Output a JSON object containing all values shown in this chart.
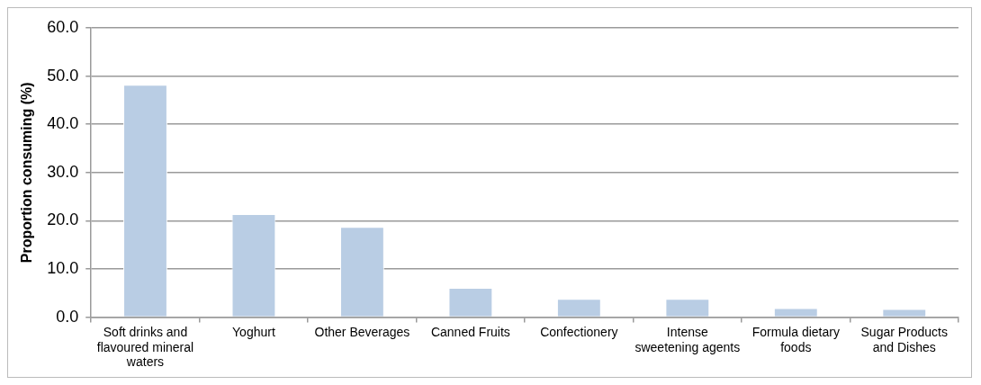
{
  "chart_data": {
    "type": "bar",
    "ylabel": "Proportion consuming (%)",
    "categories": [
      "Soft drinks and flavoured mineral waters",
      "Yoghurt",
      "Other Beverages",
      "Canned Fruits",
      "Confectionery",
      "Intense sweetening agents",
      "Formula dietary foods",
      "Sugar Products and Dishes"
    ],
    "values": [
      48.2,
      21.4,
      18.7,
      6.1,
      3.8,
      3.8,
      1.9,
      1.7
    ],
    "color": "#b9cde4",
    "ylim": [
      0,
      60
    ],
    "yticks": [
      {
        "value": 0,
        "label": "0.0"
      },
      {
        "value": 10,
        "label": "10.0"
      },
      {
        "value": 20,
        "label": "20.0"
      },
      {
        "value": 30,
        "label": "30.0"
      },
      {
        "value": 40,
        "label": "40.0"
      },
      {
        "value": 50,
        "label": "50.0"
      },
      {
        "value": 60,
        "label": "60.0"
      }
    ],
    "grid": "y",
    "legend": false
  }
}
